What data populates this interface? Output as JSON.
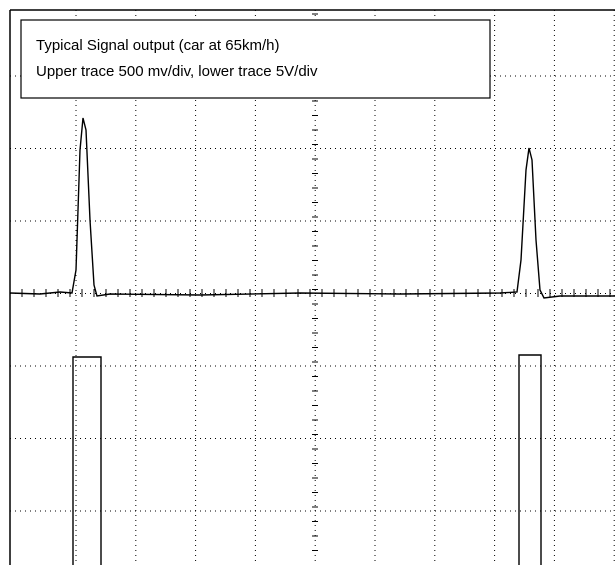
{
  "legend": {
    "lines": [
      "Typical Signal output (car at 65km/h)",
      "Upper trace 500 mv/div, lower trace 5V/div"
    ]
  }
}
